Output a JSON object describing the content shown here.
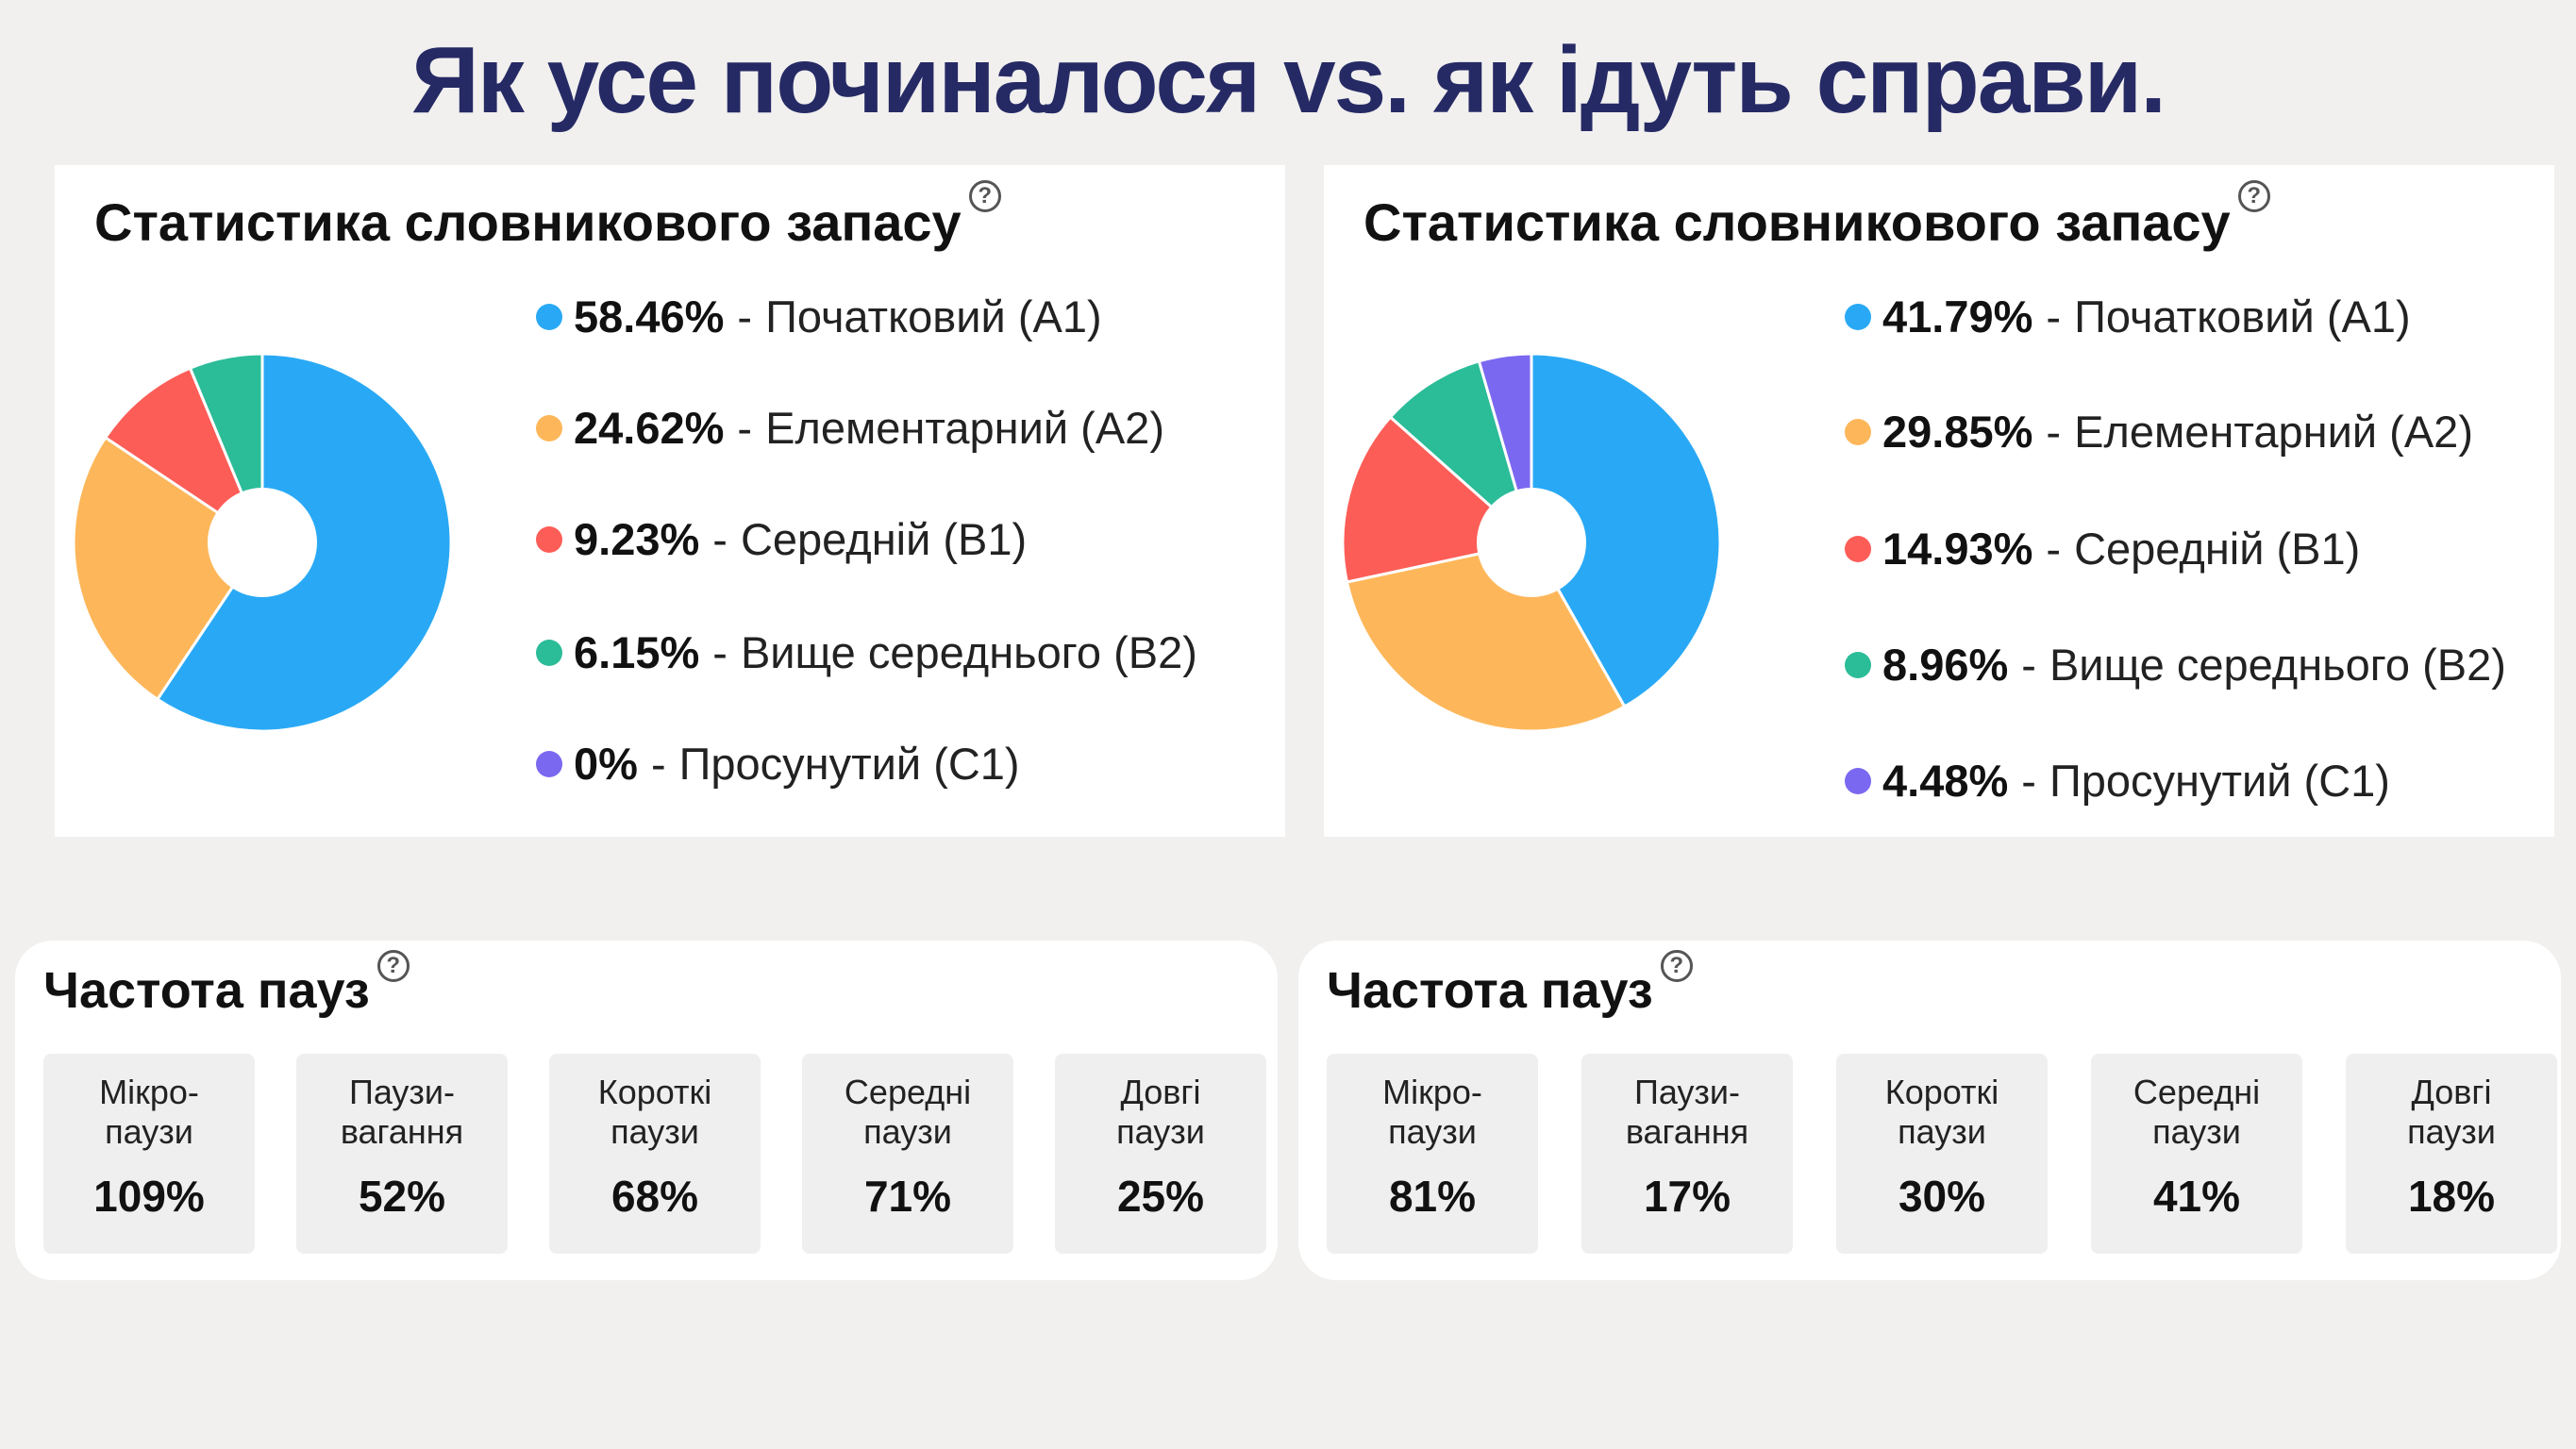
{
  "page_title": "Як усе починалося vs. як ідуть справи.",
  "help_glyph": "?",
  "colors": {
    "A1": "#29a9f5",
    "A2": "#fdb75a",
    "B1": "#fd5d57",
    "B2": "#2bbc98",
    "C1": "#7b68f0"
  },
  "vocab": [
    {
      "title": "Статистика словникового запасу",
      "items": [
        {
          "pct": "58.46%",
          "label": "Початковий (A1)",
          "color": "#29a9f5"
        },
        {
          "pct": "24.62%",
          "label": "Елементарний (A2)",
          "color": "#fdb75a"
        },
        {
          "pct": "9.23%",
          "label": "Середній (B1)",
          "color": "#fd5d57"
        },
        {
          "pct": "6.15%",
          "label": "Вище середнього (B2)",
          "color": "#2bbc98"
        },
        {
          "pct": "0%",
          "label": "Просунутий (C1)",
          "color": "#7b68f0"
        }
      ]
    },
    {
      "title": "Статистика словникового запасу",
      "items": [
        {
          "pct": "41.79%",
          "label": "Початковий (A1)",
          "color": "#29a9f5"
        },
        {
          "pct": "29.85%",
          "label": "Елементарний (A2)",
          "color": "#fdb75a"
        },
        {
          "pct": "14.93%",
          "label": "Середній (B1)",
          "color": "#fd5d57"
        },
        {
          "pct": "8.96%",
          "label": "Вище середнього (B2)",
          "color": "#2bbc98"
        },
        {
          "pct": "4.48%",
          "label": "Просунутий (C1)",
          "color": "#7b68f0"
        }
      ]
    }
  ],
  "pauses": [
    {
      "title": "Частота пауз",
      "cards": [
        {
          "label1": "Мікро-",
          "label2": "паузи",
          "value": "109%"
        },
        {
          "label1": "Паузи-",
          "label2": "вагання",
          "value": "52%"
        },
        {
          "label1": "Короткі",
          "label2": "паузи",
          "value": "68%"
        },
        {
          "label1": "Середні",
          "label2": "паузи",
          "value": "71%"
        },
        {
          "label1": "Довгі",
          "label2": "паузи",
          "value": "25%"
        }
      ]
    },
    {
      "title": "Частота пауз",
      "cards": [
        {
          "label1": "Мікро-",
          "label2": "паузи",
          "value": "81%"
        },
        {
          "label1": "Паузи-",
          "label2": "вагання",
          "value": "17%"
        },
        {
          "label1": "Короткі",
          "label2": "паузи",
          "value": "30%"
        },
        {
          "label1": "Середні",
          "label2": "паузи",
          "value": "41%"
        },
        {
          "label1": "Довгі",
          "label2": "паузи",
          "value": "18%"
        }
      ]
    }
  ],
  "chart_data": [
    {
      "type": "pie",
      "title": "Статистика словникового запасу",
      "categories": [
        "Початковий (A1)",
        "Елементарний (A2)",
        "Середній (B1)",
        "Вище середнього (B2)",
        "Просунутий (C1)"
      ],
      "values": [
        58.46,
        24.62,
        9.23,
        6.15,
        0
      ],
      "colors": [
        "#29a9f5",
        "#fdb75a",
        "#fd5d57",
        "#2bbc98",
        "#7b68f0"
      ],
      "legend": "right"
    },
    {
      "type": "pie",
      "title": "Статистика словникового запасу",
      "categories": [
        "Початковий (A1)",
        "Елементарний (A2)",
        "Середній (B1)",
        "Вище середнього (B2)",
        "Просунутий (C1)"
      ],
      "values": [
        41.79,
        29.85,
        14.93,
        8.96,
        4.48
      ],
      "colors": [
        "#29a9f5",
        "#fdb75a",
        "#fd5d57",
        "#2bbc98",
        "#7b68f0"
      ],
      "legend": "right"
    }
  ]
}
